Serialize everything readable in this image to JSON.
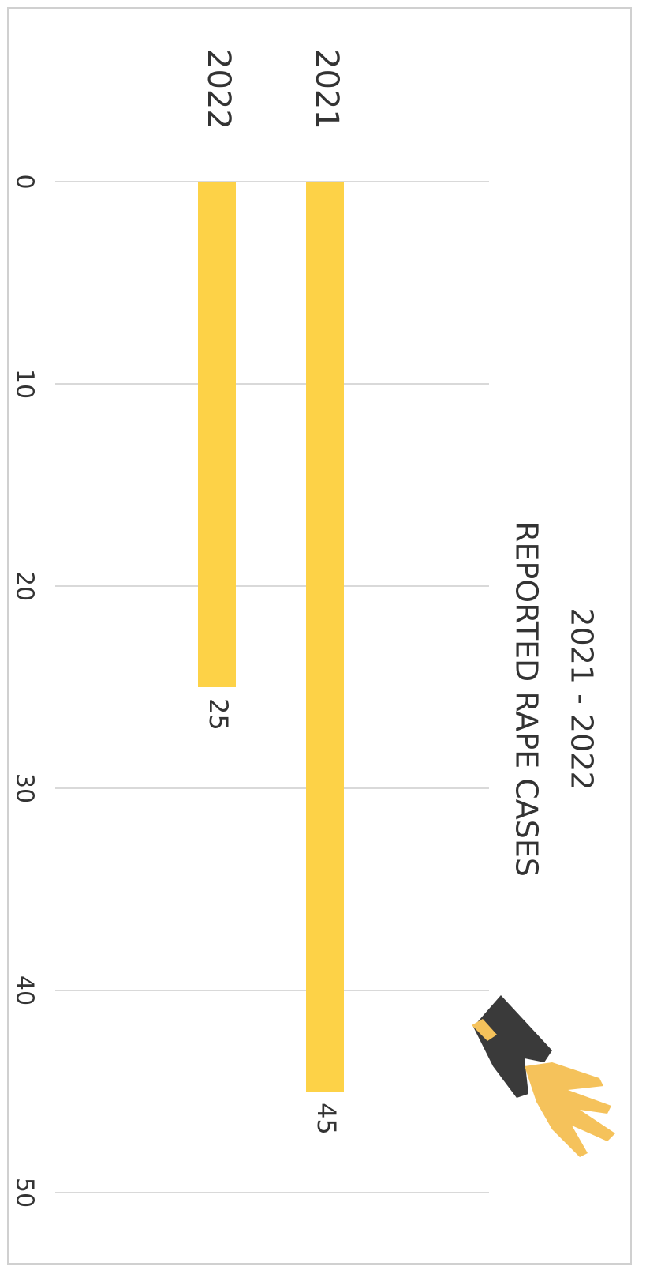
{
  "chart_data": {
    "type": "bar",
    "title": "2021 - 2022",
    "subtitle": "REPORTED RAPE CASES",
    "categories": [
      "2021",
      "2022"
    ],
    "values": [
      45,
      25
    ],
    "color": "#fdd247",
    "ylim": [
      0,
      50
    ],
    "yticks": [
      0,
      10,
      20,
      30,
      40,
      50
    ],
    "grid": true
  }
}
